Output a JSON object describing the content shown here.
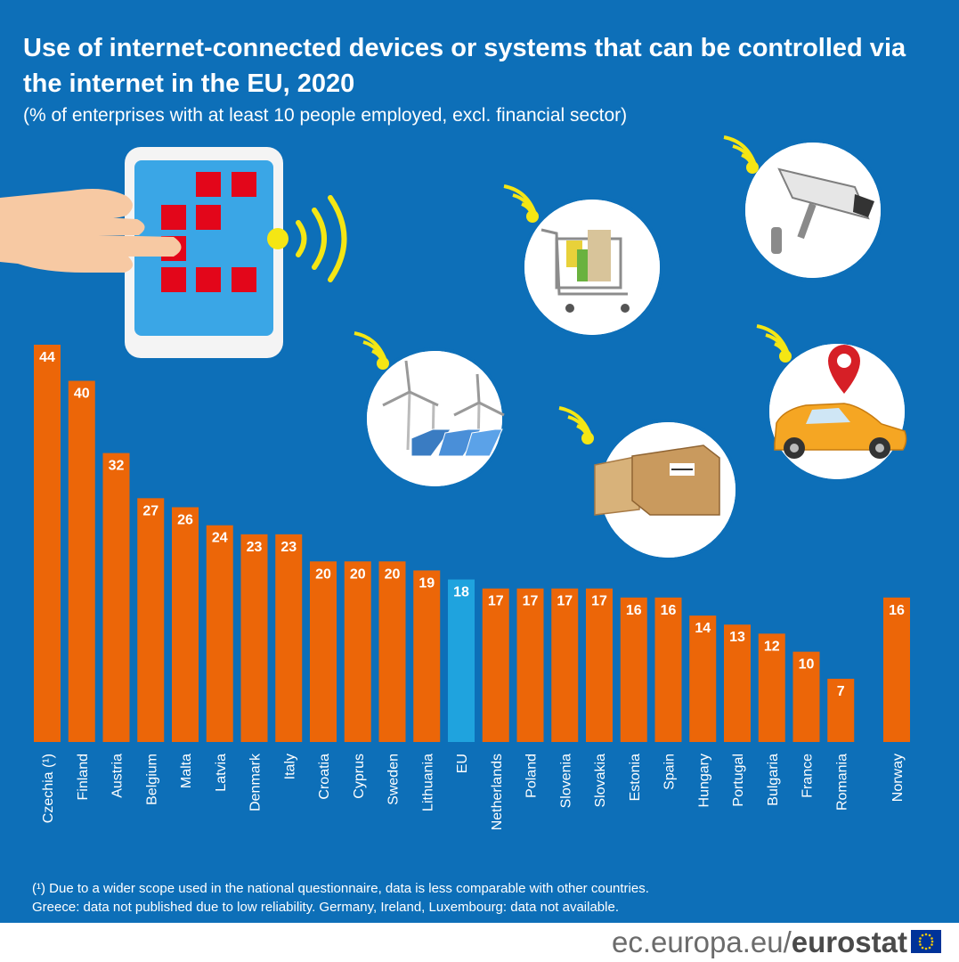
{
  "title": "Use of internet-connected devices or systems that can be controlled via the internet in the EU, 2020",
  "subtitle": "(% of enterprises with at least 10 people employed, excl. financial sector)",
  "chart_data": {
    "type": "bar",
    "categories": [
      "Czechia (¹)",
      "Finland",
      "Austria",
      "Belgium",
      "Malta",
      "Latvia",
      "Denmark",
      "Italy",
      "Croatia",
      "Cyprus",
      "Sweden",
      "Lithuania",
      "EU",
      "Netherlands",
      "Poland",
      "Slovenia",
      "Slovakia",
      "Estonia",
      "Spain",
      "Hungary",
      "Portugal",
      "Bulgaria",
      "France",
      "Romania",
      "Norway"
    ],
    "values": [
      44,
      40,
      32,
      27,
      26,
      24,
      23,
      23,
      20,
      20,
      20,
      19,
      18,
      17,
      17,
      17,
      17,
      16,
      16,
      14,
      13,
      12,
      10,
      7,
      16
    ],
    "highlight": "EU",
    "bar_color": "#ec6608",
    "highlight_color": "#1fa3de",
    "label_color": "#ffffff",
    "ylim": [
      0,
      44
    ]
  },
  "footnotes": [
    "(¹) Due to a wider scope used in the national questionnaire, data is less comparable with other countries.",
    "Greece: data not published due to low reliability. Germany, Ireland, Luxembourg: data not available."
  ],
  "footer": {
    "site": "ec.europa.eu/",
    "brand": "eurostat"
  },
  "illustrations": [
    "tablet-hand-illustration",
    "shopping-cart-icon",
    "security-camera-icon",
    "wind-solar-energy-icon",
    "cardboard-boxes-icon",
    "car-location-icon"
  ],
  "colors": {
    "background": "#0d6fb8",
    "signal": "#f5e614",
    "tablet_tile": "#e3061a",
    "tablet_screen": "#3aa6e6",
    "car": "#f5a623",
    "pin": "#d61f26"
  }
}
